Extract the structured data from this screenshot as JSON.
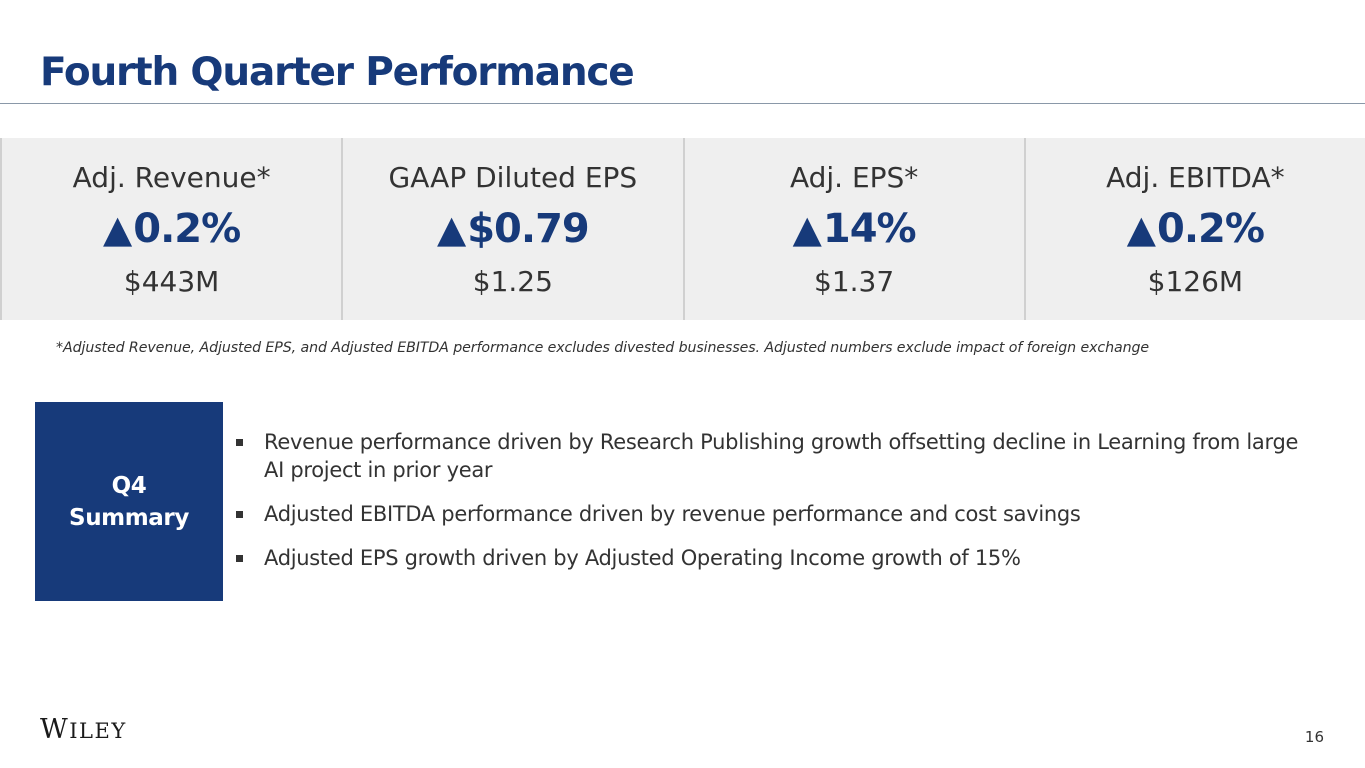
{
  "header": {
    "title": "Fourth Quarter Performance"
  },
  "metrics": [
    {
      "label": "Adj. Revenue*",
      "arrow": "▲",
      "change": "0.2%",
      "value": "$443M"
    },
    {
      "label": "GAAP Diluted EPS",
      "arrow": "▲",
      "change": "$0.79",
      "value": "$1.25"
    },
    {
      "label": "Adj. EPS*",
      "arrow": "▲",
      "change": "14%",
      "value": "$1.37"
    },
    {
      "label": "Adj. EBITDA*",
      "arrow": "▲",
      "change": "0.2%",
      "value": "$126M"
    }
  ],
  "footnote": "*Adjusted Revenue, Adjusted EPS, and Adjusted EBITDA performance excludes divested businesses.  Adjusted numbers exclude impact of foreign exchange",
  "summary": {
    "label_line1": "Q4",
    "label_line2": "Summary",
    "bullets": [
      "Revenue performance driven by Research Publishing growth offsetting decline in Learning from large AI project in prior year",
      "Adjusted EBITDA performance driven by revenue performance and cost savings",
      "Adjusted EPS growth driven by Adjusted Operating Income growth of 15%"
    ]
  },
  "footer": {
    "logo_first": "W",
    "logo_rest": "ILEY",
    "page_number": "16"
  },
  "colors": {
    "brand_navy": "#173a7a",
    "panel_gray": "#efefef",
    "text_dark": "#333333"
  },
  "icons": {
    "increase": "up-triangle-icon"
  }
}
